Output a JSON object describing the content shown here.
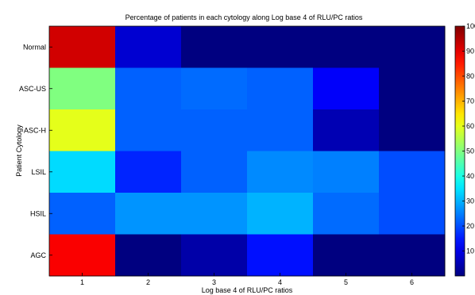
{
  "chart_data": {
    "type": "heatmap",
    "title": "Percentage of patients in each cytology along Log base 4 of RLU/PC ratios",
    "xlabel": "Log base 4 of RLU/PC ratios",
    "ylabel": "Patient Cytology",
    "x_categories": [
      "1",
      "2",
      "3",
      "4",
      "5",
      "6"
    ],
    "y_categories": [
      "Normal",
      "ASC-US",
      "ASC-H",
      "LSIL",
      "HSIL",
      "AGC"
    ],
    "values": [
      [
        92,
        8,
        0,
        0,
        0,
        0
      ],
      [
        50,
        22,
        23,
        22,
        12,
        0
      ],
      [
        60,
        22,
        22,
        22,
        5,
        0
      ],
      [
        34,
        16,
        22,
        26,
        25,
        20
      ],
      [
        22,
        27,
        27,
        30,
        23,
        20
      ],
      [
        88,
        0,
        4,
        14,
        0,
        0
      ]
    ],
    "colorbar": {
      "min": 0,
      "max": 100,
      "ticks": [
        "10",
        "20",
        "30",
        "40",
        "50",
        "60",
        "70",
        "80",
        "90",
        "100"
      ],
      "colormap": "jet"
    },
    "grid": false
  }
}
